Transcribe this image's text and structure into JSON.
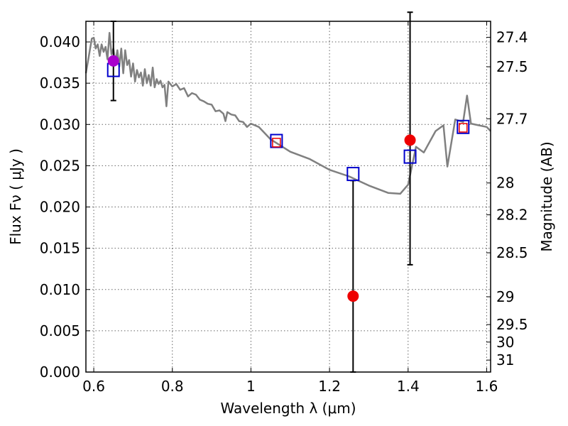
{
  "chart_data": {
    "type": "line",
    "title": "",
    "xlabel": "Wavelength  λ (μm)",
    "ylabel": "Flux  Fν  ( μJy )",
    "ylabel_right": "Magnitude (AB)",
    "xlim": [
      0.58,
      1.61
    ],
    "ylim": [
      0.0,
      0.0425
    ],
    "grid": true,
    "x_ticks": [
      {
        "value": 0.6,
        "label": "0.6"
      },
      {
        "value": 0.8,
        "label": "0.8"
      },
      {
        "value": 1.0,
        "label": "1"
      },
      {
        "value": 1.2,
        "label": "1.2"
      },
      {
        "value": 1.4,
        "label": "1.4"
      },
      {
        "value": 1.6,
        "label": "1.6"
      }
    ],
    "y_ticks": [
      {
        "value": 0.0,
        "label": "0.000"
      },
      {
        "value": 0.005,
        "label": "0.005"
      },
      {
        "value": 0.01,
        "label": "0.010"
      },
      {
        "value": 0.015,
        "label": "0.015"
      },
      {
        "value": 0.02,
        "label": "0.020"
      },
      {
        "value": 0.025,
        "label": "0.025"
      },
      {
        "value": 0.03,
        "label": "0.030"
      },
      {
        "value": 0.035,
        "label": "0.035"
      },
      {
        "value": 0.04,
        "label": "0.040"
      }
    ],
    "magnitude_ticks": [
      {
        "flux": 0.04056,
        "label": "27.4"
      },
      {
        "flux": 0.03699,
        "label": "27.5"
      },
      {
        "flux": 0.03069,
        "label": "27.7"
      },
      {
        "flux": 0.02291,
        "label": "28"
      },
      {
        "flux": 0.01905,
        "label": "28.2"
      },
      {
        "flux": 0.01445,
        "label": "28.5"
      },
      {
        "flux": 0.00912,
        "label": "29"
      },
      {
        "flux": 0.00575,
        "label": "29.5"
      },
      {
        "flux": 0.00363,
        "label": "30"
      },
      {
        "flux": 0.00145,
        "label": "31"
      }
    ],
    "colors": {
      "model": "#808080",
      "model_photometry": "#0000cc",
      "observed": "#ee0000",
      "observed_first": "#aa00cc",
      "error_bar": "#000000",
      "inner_square": "#ee0000"
    },
    "series": [
      {
        "type": "line",
        "x": [
          0.58,
          0.595,
          0.6,
          0.605,
          0.61,
          0.615,
          0.62,
          0.625,
          0.63,
          0.635,
          0.64,
          0.645,
          0.65,
          0.655,
          0.66,
          0.665,
          0.67,
          0.675,
          0.68,
          0.685,
          0.69,
          0.695,
          0.7,
          0.705,
          0.71,
          0.715,
          0.72,
          0.725,
          0.73,
          0.735,
          0.74,
          0.745,
          0.75,
          0.755,
          0.76,
          0.765,
          0.77,
          0.775,
          0.78,
          0.785,
          0.79,
          0.8,
          0.81,
          0.82,
          0.83,
          0.84,
          0.85,
          0.86,
          0.87,
          0.88,
          0.89,
          0.9,
          0.91,
          0.92,
          0.93,
          0.935,
          0.94,
          0.95,
          0.96,
          0.97,
          0.98,
          0.99,
          1.0,
          1.02,
          1.05,
          1.1,
          1.15,
          1.2,
          1.25,
          1.3,
          1.35,
          1.38,
          1.4,
          1.42,
          1.44,
          1.47,
          1.49,
          1.5,
          1.52,
          1.54,
          1.55,
          1.56,
          1.58,
          1.6,
          1.61
        ],
        "y": [
          0.0362,
          0.0404,
          0.0405,
          0.0392,
          0.0397,
          0.0383,
          0.0397,
          0.0388,
          0.0394,
          0.0379,
          0.0411,
          0.0385,
          0.0392,
          0.0375,
          0.039,
          0.037,
          0.0392,
          0.0362,
          0.039,
          0.0372,
          0.0378,
          0.0358,
          0.0374,
          0.0352,
          0.0366,
          0.0357,
          0.0363,
          0.0347,
          0.0367,
          0.035,
          0.036,
          0.0347,
          0.0369,
          0.0345,
          0.0355,
          0.0349,
          0.0353,
          0.0345,
          0.0348,
          0.0322,
          0.0352,
          0.0346,
          0.0349,
          0.0342,
          0.0344,
          0.0334,
          0.0338,
          0.0336,
          0.033,
          0.0328,
          0.0325,
          0.0324,
          0.0316,
          0.0317,
          0.0313,
          0.0304,
          0.0315,
          0.0312,
          0.0311,
          0.0304,
          0.0303,
          0.0297,
          0.0301,
          0.0297,
          0.0282,
          0.0267,
          0.0258,
          0.0245,
          0.0237,
          0.0226,
          0.0217,
          0.0216,
          0.0227,
          0.0273,
          0.0266,
          0.0292,
          0.0299,
          0.0249,
          0.0306,
          0.0303,
          0.0335,
          0.0301,
          0.0299,
          0.0297,
          0.0292
        ]
      },
      {
        "type": "squares",
        "x": [
          0.65,
          1.065,
          1.26,
          1.405,
          1.54
        ],
        "y": [
          0.0366,
          0.028,
          0.024,
          0.0261,
          0.0297
        ]
      },
      {
        "type": "inner-squares",
        "x": [
          1.065,
          1.54
        ],
        "y": [
          0.0278,
          0.0296
        ]
      },
      {
        "type": "points",
        "x": [
          0.65,
          1.26,
          1.405
        ],
        "y": [
          0.0377,
          0.0092,
          0.0281
        ],
        "err_low": [
          0.0048,
          0.0092,
          0.0151
        ],
        "err_high": [
          0.0048,
          0.014,
          0.0155
        ]
      }
    ]
  }
}
